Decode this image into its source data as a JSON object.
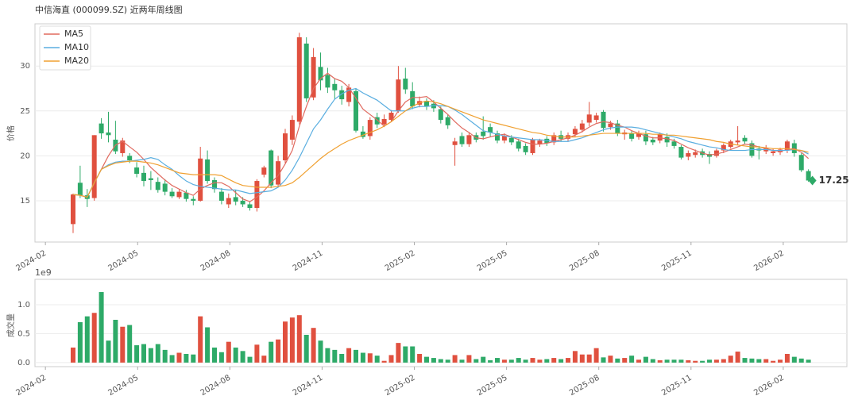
{
  "chart_data": {
    "type": "candlestick",
    "title": "中信海直 (000099.SZ) 近两年周线图",
    "ylabel": "价格",
    "y2label": "成交量",
    "y2_offset": "1e9",
    "x": [
      1.9,
      2.13,
      2.36,
      2.59,
      2.82,
      3.05,
      3.28,
      3.51,
      3.74,
      3.97,
      4.2,
      4.43,
      4.66,
      4.89,
      5.12,
      5.35,
      5.58,
      5.81,
      6.04,
      6.27,
      6.5,
      6.73,
      6.96,
      7.19,
      7.42,
      7.65,
      7.88,
      8.11,
      8.34,
      8.57,
      8.8,
      9.03,
      9.26,
      9.49,
      9.72,
      9.95,
      10.18,
      10.41,
      10.64,
      10.87,
      11.1,
      11.33,
      11.56,
      11.79,
      12.02,
      12.25,
      12.48,
      12.71,
      12.94,
      13.17,
      13.4,
      13.63,
      13.86,
      14.09,
      14.32,
      14.55,
      14.78,
      15.01,
      15.24,
      15.47,
      15.7,
      15.93,
      16.16,
      16.39,
      16.62,
      16.85,
      17.08,
      17.31,
      17.54,
      17.77,
      18.0,
      18.23,
      18.46,
      18.69,
      18.92,
      19.15,
      19.38,
      19.61,
      19.84,
      20.07,
      20.3,
      20.53,
      20.76,
      20.99,
      21.22,
      21.45,
      21.68,
      21.91,
      22.14,
      22.37,
      22.6,
      22.83,
      23.06,
      23.29,
      23.52,
      23.75,
      23.98,
      24.21,
      24.44,
      24.67,
      24.9,
      25.13,
      25.36,
      25.59,
      25.82
    ],
    "open": [
      12.4,
      17.0,
      15.6,
      15.3,
      23.6,
      22.6,
      21.8,
      20.3,
      20.0,
      18.7,
      18.1,
      17.5,
      17.1,
      16.9,
      16.0,
      15.4,
      15.9,
      15.2,
      15.0,
      19.6,
      17.3,
      16.0,
      14.6,
      15.4,
      15.0,
      14.6,
      14.2,
      17.9,
      20.6,
      16.8,
      19.5,
      21.8,
      23.8,
      32.5,
      26.5,
      29.9,
      29.0,
      28.0,
      27.3,
      26.0,
      27.2,
      22.7,
      22.2,
      24.3,
      23.5,
      24.0,
      25.0,
      28.6,
      27.2,
      25.7,
      26.1,
      25.8,
      25.2,
      24.3,
      21.2,
      22.2,
      21.3,
      22.3,
      22.7,
      23.2,
      22.5,
      21.7,
      22.0,
      21.6,
      21.1,
      20.3,
      21.3,
      21.9,
      21.5,
      22.3,
      21.9,
      22.4,
      22.9,
      23.7,
      24.0,
      24.9,
      23.2,
      23.6,
      22.4,
      22.5,
      22.1,
      22.4,
      21.8,
      21.7,
      22.1,
      21.6,
      21.0,
      19.9,
      20.1,
      20.5,
      20.2,
      20.0,
      20.6,
      21.0,
      21.5,
      22.0,
      21.4,
      20.8,
      20.5,
      20.3,
      20.4,
      20.6,
      21.4,
      20.1,
      18.3
    ],
    "high": [
      15.8,
      18.9,
      16.3,
      22.3,
      24.2,
      24.9,
      23.9,
      22.0,
      20.3,
      19.3,
      18.9,
      18.3,
      17.6,
      17.4,
      16.4,
      16.3,
      16.2,
      15.5,
      21.0,
      20.6,
      17.6,
      16.4,
      15.8,
      16.2,
      15.4,
      14.9,
      17.4,
      18.9,
      20.7,
      20.0,
      23.0,
      24.5,
      33.7,
      33.2,
      32.0,
      31.5,
      29.8,
      28.6,
      27.8,
      28.0,
      27.5,
      23.3,
      24.3,
      24.8,
      24.6,
      25.1,
      30.0,
      29.8,
      28.2,
      26.6,
      26.4,
      26.2,
      25.5,
      24.6,
      22.0,
      22.6,
      22.6,
      22.6,
      24.4,
      23.6,
      22.8,
      22.5,
      22.3,
      21.9,
      21.4,
      22.0,
      21.9,
      22.2,
      22.6,
      22.8,
      22.6,
      23.3,
      24.0,
      26.0,
      24.8,
      25.1,
      23.9,
      24.0,
      22.9,
      22.8,
      22.8,
      22.8,
      22.1,
      22.6,
      22.5,
      21.9,
      21.2,
      20.6,
      20.7,
      20.8,
      20.5,
      20.8,
      21.4,
      21.8,
      23.3,
      22.3,
      21.7,
      21.1,
      21.2,
      20.8,
      20.9,
      21.8,
      21.8,
      20.3,
      18.5
    ],
    "low": [
      11.4,
      15.3,
      14.3,
      15.0,
      21.9,
      21.5,
      20.2,
      19.9,
      19.2,
      17.6,
      16.6,
      16.2,
      15.9,
      15.6,
      15.3,
      15.2,
      14.9,
      14.5,
      14.9,
      16.9,
      15.9,
      14.6,
      14.2,
      14.5,
      14.3,
      13.9,
      13.8,
      17.6,
      16.4,
      16.5,
      19.2,
      21.2,
      23.5,
      26.0,
      26.2,
      27.3,
      27.0,
      26.3,
      25.7,
      25.5,
      22.6,
      21.9,
      21.8,
      23.1,
      23.2,
      23.8,
      24.8,
      26.9,
      25.2,
      25.4,
      25.1,
      24.9,
      23.6,
      23.0,
      18.9,
      21.0,
      21.0,
      21.5,
      21.8,
      22.1,
      21.4,
      21.4,
      21.2,
      20.5,
      20.1,
      20.1,
      21.0,
      21.1,
      21.2,
      21.6,
      21.6,
      22.1,
      22.6,
      23.3,
      23.7,
      22.7,
      22.9,
      22.2,
      21.8,
      21.6,
      21.8,
      21.2,
      21.2,
      21.4,
      21.0,
      20.8,
      19.6,
      19.5,
      19.8,
      19.8,
      19.1,
      19.8,
      20.3,
      20.8,
      21.2,
      21.3,
      19.8,
      19.6,
      20.2,
      20.0,
      20.1,
      20.3,
      19.9,
      18.2,
      17.1
    ],
    "close": [
      15.7,
      15.6,
      15.2,
      22.3,
      22.5,
      22.3,
      20.5,
      21.7,
      19.5,
      18.0,
      17.2,
      17.3,
      16.2,
      16.0,
      15.5,
      16.0,
      15.2,
      15.0,
      19.7,
      17.2,
      16.3,
      15.0,
      15.3,
      14.9,
      14.6,
      14.2,
      17.2,
      18.7,
      16.7,
      19.4,
      22.5,
      24.0,
      33.2,
      26.4,
      31.0,
      28.4,
      27.6,
      27.3,
      26.3,
      27.6,
      22.8,
      22.1,
      24.0,
      23.5,
      24.1,
      24.8,
      28.5,
      27.4,
      25.5,
      26.1,
      25.5,
      25.3,
      24.0,
      23.4,
      21.6,
      21.3,
      22.3,
      21.8,
      22.2,
      22.6,
      21.7,
      22.2,
      21.5,
      20.8,
      20.4,
      21.8,
      21.7,
      21.4,
      22.3,
      21.9,
      22.3,
      23.0,
      23.6,
      24.6,
      24.5,
      23.1,
      23.6,
      22.5,
      22.6,
      21.9,
      22.5,
      21.6,
      21.5,
      22.4,
      21.5,
      21.1,
      19.8,
      20.3,
      20.4,
      20.1,
      19.9,
      20.6,
      21.2,
      21.6,
      21.7,
      21.6,
      20.0,
      20.6,
      20.9,
      20.5,
      20.7,
      21.6,
      20.3,
      18.4,
      17.25
    ],
    "volume": [
      0.26,
      0.7,
      0.8,
      0.86,
      1.22,
      0.38,
      0.74,
      0.62,
      0.65,
      0.3,
      0.32,
      0.25,
      0.32,
      0.22,
      0.13,
      0.17,
      0.15,
      0.14,
      0.8,
      0.61,
      0.26,
      0.18,
      0.36,
      0.26,
      0.2,
      0.1,
      0.31,
      0.12,
      0.36,
      0.4,
      0.71,
      0.78,
      0.82,
      0.48,
      0.6,
      0.38,
      0.25,
      0.22,
      0.15,
      0.25,
      0.22,
      0.17,
      0.16,
      0.12,
      0.03,
      0.13,
      0.34,
      0.28,
      0.28,
      0.15,
      0.1,
      0.08,
      0.06,
      0.05,
      0.13,
      0.05,
      0.13,
      0.06,
      0.1,
      0.04,
      0.08,
      0.05,
      0.05,
      0.08,
      0.05,
      0.08,
      0.05,
      0.06,
      0.08,
      0.06,
      0.08,
      0.2,
      0.14,
      0.14,
      0.25,
      0.09,
      0.12,
      0.07,
      0.08,
      0.12,
      0.05,
      0.1,
      0.06,
      0.04,
      0.05,
      0.05,
      0.05,
      0.04,
      0.03,
      0.03,
      0.05,
      0.05,
      0.06,
      0.12,
      0.19,
      0.08,
      0.07,
      0.06,
      0.06,
      0.03,
      0.05,
      0.15,
      0.1,
      0.07,
      0.05
    ],
    "series": [
      {
        "name": "MA5",
        "color": "#e06a5f",
        "values": [
          15.7,
          15.6,
          15.4,
          17.0,
          18.5,
          20.0,
          21.2,
          21.6,
          21.0,
          20.4,
          19.6,
          18.7,
          18.0,
          17.3,
          16.7,
          16.3,
          15.9,
          15.6,
          16.3,
          16.7,
          17.0,
          17.0,
          16.6,
          15.9,
          15.2,
          14.9,
          15.4,
          16.1,
          17.0,
          17.8,
          19.1,
          20.6,
          23.3,
          25.5,
          27.5,
          28.6,
          29.2,
          28.6,
          28.3,
          27.6,
          26.4,
          25.2,
          24.6,
          24.0,
          23.3,
          23.8,
          25.0,
          26.0,
          26.5,
          26.5,
          26.6,
          26.0,
          25.3,
          24.6,
          23.8,
          23.1,
          22.6,
          22.0,
          21.9,
          22.1,
          22.3,
          22.4,
          22.1,
          21.8,
          21.5,
          21.3,
          21.3,
          21.4,
          21.6,
          21.8,
          22.0,
          22.3,
          22.7,
          23.2,
          23.6,
          23.8,
          23.7,
          23.4,
          23.2,
          22.8,
          22.5,
          22.2,
          22.0,
          22.0,
          21.9,
          21.7,
          21.3,
          20.9,
          20.6,
          20.3,
          20.1,
          20.2,
          20.4,
          20.7,
          21.0,
          21.3,
          21.2,
          21.0,
          20.8,
          20.6,
          20.5,
          20.7,
          20.8,
          20.4,
          19.7
        ]
      },
      {
        "name": "MA10",
        "color": "#5aaee0",
        "values": [
          15.7,
          15.6,
          15.4,
          17.0,
          18.5,
          19.0,
          19.3,
          19.4,
          19.4,
          19.5,
          19.6,
          19.8,
          19.6,
          19.0,
          18.5,
          17.8,
          17.2,
          16.8,
          16.6,
          16.5,
          16.4,
          16.3,
          16.2,
          16.2,
          16.0,
          15.8,
          15.9,
          16.0,
          16.1,
          16.5,
          17.3,
          18.4,
          19.8,
          21.4,
          23.0,
          24.0,
          25.2,
          26.3,
          26.9,
          27.3,
          27.5,
          27.0,
          26.6,
          26.2,
          25.6,
          25.0,
          25.0,
          25.0,
          25.3,
          25.5,
          25.5,
          25.6,
          25.6,
          25.5,
          25.1,
          24.6,
          24.0,
          23.4,
          22.8,
          22.6,
          22.4,
          22.2,
          22.1,
          22.0,
          21.9,
          21.8,
          21.8,
          21.7,
          21.6,
          21.6,
          21.6,
          21.8,
          22.0,
          22.3,
          22.6,
          22.9,
          23.1,
          23.2,
          23.2,
          23.2,
          23.1,
          22.9,
          22.7,
          22.5,
          22.3,
          22.1,
          21.9,
          21.6,
          21.4,
          21.2,
          21.0,
          20.9,
          20.7,
          20.6,
          20.6,
          20.6,
          20.7,
          20.7,
          20.7,
          20.6,
          20.6,
          20.6,
          20.7,
          20.6,
          20.2
        ]
      },
      {
        "name": "MA20",
        "color": "#f0a030",
        "values": [
          15.7,
          15.6,
          15.4,
          17.0,
          18.5,
          18.9,
          19.2,
          19.3,
          19.4,
          19.4,
          19.3,
          19.2,
          19.0,
          18.7,
          18.4,
          18.1,
          18.0,
          17.9,
          17.9,
          17.9,
          17.9,
          17.8,
          17.4,
          17.0,
          16.7,
          16.6,
          16.5,
          16.5,
          16.5,
          16.6,
          16.7,
          17.0,
          17.6,
          18.3,
          19.0,
          19.7,
          20.3,
          20.8,
          21.3,
          21.7,
          22.0,
          22.3,
          22.6,
          22.9,
          23.3,
          23.8,
          24.4,
          25.0,
          25.5,
          25.9,
          26.1,
          26.0,
          25.8,
          25.5,
          25.2,
          24.9,
          24.6,
          24.3,
          24.0,
          23.8,
          23.6,
          23.4,
          23.2,
          23.0,
          22.8,
          22.6,
          22.5,
          22.3,
          22.2,
          22.1,
          22.1,
          22.1,
          22.2,
          22.3,
          22.4,
          22.5,
          22.5,
          22.5,
          22.5,
          22.5,
          22.5,
          22.5,
          22.4,
          22.4,
          22.3,
          22.3,
          22.2,
          22.1,
          22.0,
          21.9,
          21.8,
          21.6,
          21.5,
          21.3,
          21.2,
          21.1,
          21.0,
          21.0,
          20.9,
          20.8,
          20.8,
          20.8,
          20.7,
          20.6,
          20.4
        ]
      }
    ],
    "up_color": "#e0503f",
    "down_color": "#2eaa68",
    "xlim": [
      0.66,
      27.07
    ],
    "xticks": [
      {
        "value": 1,
        "label": "2024-02"
      },
      {
        "value": 4,
        "label": "2024-05"
      },
      {
        "value": 7,
        "label": "2024-08"
      },
      {
        "value": 10,
        "label": "2024-11"
      },
      {
        "value": 13,
        "label": "2025-02"
      },
      {
        "value": 16,
        "label": "2025-05"
      },
      {
        "value": 19,
        "label": "2025-08"
      },
      {
        "value": 22,
        "label": "2025-11"
      },
      {
        "value": 25,
        "label": "2026-02"
      }
    ],
    "ylim": [
      10.4,
      34.7
    ],
    "yticks": [
      15,
      20,
      25,
      30
    ],
    "y2lim": [
      -0.07,
      1.44
    ],
    "y2ticks": [
      {
        "value": 0,
        "label": "0.0"
      },
      0.5,
      {
        "value": 1,
        "label": "1.0"
      }
    ],
    "grid": true,
    "legend": "upper left"
  }
}
